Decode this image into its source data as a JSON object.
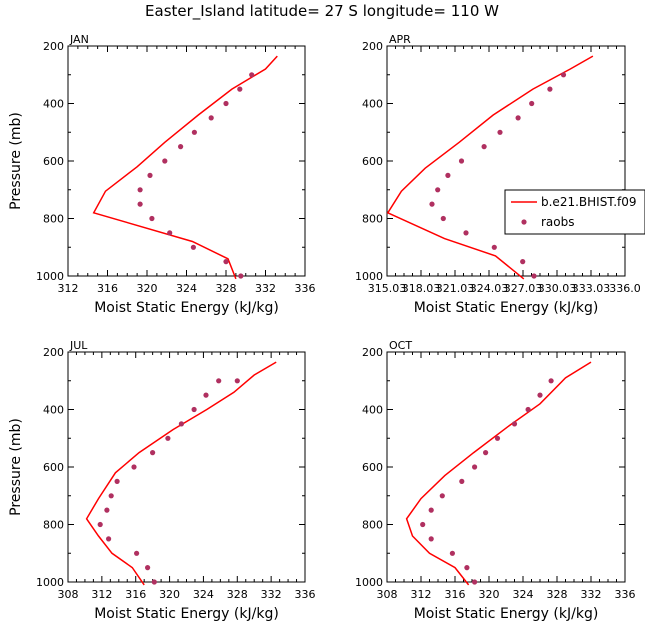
{
  "title": "Easter_Island  latitude= 27 S longitude= 110 W",
  "legend": {
    "entries": [
      {
        "label": "b.e21.BHIST.f09",
        "style": "line",
        "color": "#ff0000"
      },
      {
        "label": "raobs",
        "style": "marker",
        "color": "#b03060"
      }
    ]
  },
  "colors": {
    "model": "#ff0000",
    "obs": "#b03060",
    "axes": "#000000"
  },
  "chart_data": [
    {
      "type": "line",
      "panel": "JAN",
      "xlabel": "Moist Static Energy (kJ/kg)",
      "ylabel": "Pressure (mb)",
      "xlim": [
        312,
        336
      ],
      "ylim": [
        200,
        1000
      ],
      "y_inverted": true,
      "xticks": [
        "312",
        "316",
        "320",
        "324",
        "328",
        "332",
        "336"
      ],
      "yticks": [
        "200",
        "400",
        "600",
        "800",
        "1000"
      ],
      "series": [
        {
          "name": "b.e21.BHIST.f09",
          "style": "line",
          "x": [
            329.0,
            328.2,
            324.6,
            314.6,
            315.8,
            319.0,
            321.8,
            325.2,
            328.6,
            332.0,
            333.2
          ],
          "y": [
            1010,
            940,
            880,
            780,
            705,
            620,
            535,
            440,
            350,
            280,
            235
          ]
        },
        {
          "name": "raobs",
          "style": "marker",
          "x": [
            329.5,
            328.0,
            324.7,
            322.3,
            320.5,
            319.3,
            319.3,
            320.3,
            321.8,
            323.4,
            324.8,
            326.5,
            328.0,
            329.4,
            330.6
          ],
          "y": [
            1000,
            950,
            900,
            850,
            800,
            750,
            700,
            650,
            600,
            550,
            500,
            450,
            400,
            350,
            300
          ]
        }
      ]
    },
    {
      "type": "line",
      "panel": "APR",
      "xlabel": "Moist Static Energy (kJ/kg)",
      "ylabel": "",
      "xlim": [
        315.03,
        336.03
      ],
      "ylim": [
        200,
        1000
      ],
      "y_inverted": true,
      "xticks": [
        "315.03",
        "318.03",
        "321.03",
        "324.03",
        "327.03",
        "330.03",
        "333.03",
        "336.0"
      ],
      "yticks": [
        "200",
        "400",
        "600",
        "800",
        "1000"
      ],
      "series": [
        {
          "name": "b.e21.BHIST.f09",
          "style": "line",
          "x": [
            327.1,
            324.6,
            320.1,
            315.1,
            316.3,
            318.4,
            321.4,
            324.4,
            327.9,
            331.2,
            333.2
          ],
          "y": [
            1010,
            930,
            870,
            780,
            705,
            625,
            535,
            440,
            350,
            280,
            235
          ]
        },
        {
          "name": "raobs",
          "style": "marker",
          "x": [
            328.0,
            327.0,
            324.5,
            322.0,
            320.0,
            319.0,
            319.5,
            320.4,
            321.6,
            323.6,
            325.0,
            326.6,
            327.8,
            329.4,
            330.6
          ],
          "y": [
            1000,
            950,
            900,
            850,
            800,
            750,
            700,
            650,
            600,
            550,
            500,
            450,
            400,
            350,
            300
          ]
        }
      ]
    },
    {
      "type": "line",
      "panel": "JUL",
      "xlabel": "Moist Static Energy (kJ/kg)",
      "ylabel": "Pressure (mb)",
      "xlim": [
        308,
        336
      ],
      "ylim": [
        200,
        1000
      ],
      "y_inverted": true,
      "xticks": [
        "308",
        "312",
        "316",
        "320",
        "324",
        "328",
        "332",
        "336"
      ],
      "yticks": [
        "200",
        "400",
        "600",
        "800",
        "1000"
      ],
      "series": [
        {
          "name": "b.e21.BHIST.f09",
          "style": "line",
          "x": [
            317.0,
            315.6,
            313.2,
            311.6,
            310.2,
            311.6,
            313.6,
            316.4,
            320.4,
            324.4,
            327.6,
            330.0,
            332.6
          ],
          "y": [
            1010,
            950,
            900,
            840,
            780,
            710,
            620,
            550,
            470,
            400,
            340,
            280,
            235
          ]
        },
        {
          "name": "raobs",
          "style": "marker",
          "x": [
            318.2,
            317.4,
            316.1,
            312.8,
            311.8,
            312.6,
            313.1,
            313.8,
            315.8,
            318.0,
            319.8,
            321.4,
            322.9,
            324.3,
            325.8,
            328.0
          ],
          "y": [
            1000,
            950,
            900,
            850,
            800,
            750,
            700,
            650,
            600,
            550,
            500,
            450,
            400,
            350,
            300,
            300
          ]
        }
      ]
    },
    {
      "type": "line",
      "panel": "OCT",
      "xlabel": "Moist Static Energy (kJ/kg)",
      "ylabel": "",
      "xlim": [
        308,
        336
      ],
      "ylim": [
        200,
        1000
      ],
      "y_inverted": true,
      "xticks": [
        "308",
        "312",
        "316",
        "320",
        "324",
        "328",
        "332",
        "336"
      ],
      "yticks": [
        "200",
        "400",
        "600",
        "800",
        "1000"
      ],
      "series": [
        {
          "name": "b.e21.BHIST.f09",
          "style": "line",
          "x": [
            317.6,
            316.0,
            313.0,
            311.0,
            310.3,
            312.0,
            314.8,
            318.2,
            322.2,
            326.0,
            329.0,
            332.0
          ],
          "y": [
            1010,
            950,
            900,
            840,
            780,
            710,
            630,
            550,
            460,
            380,
            290,
            235
          ]
        },
        {
          "name": "raobs",
          "style": "marker",
          "x": [
            318.3,
            317.4,
            315.7,
            313.2,
            312.2,
            313.2,
            314.5,
            316.8,
            318.3,
            319.6,
            321.0,
            323.0,
            324.6,
            326.0,
            327.3
          ],
          "y": [
            1000,
            950,
            900,
            850,
            800,
            750,
            700,
            650,
            600,
            550,
            500,
            450,
            400,
            350,
            300
          ]
        }
      ]
    }
  ]
}
